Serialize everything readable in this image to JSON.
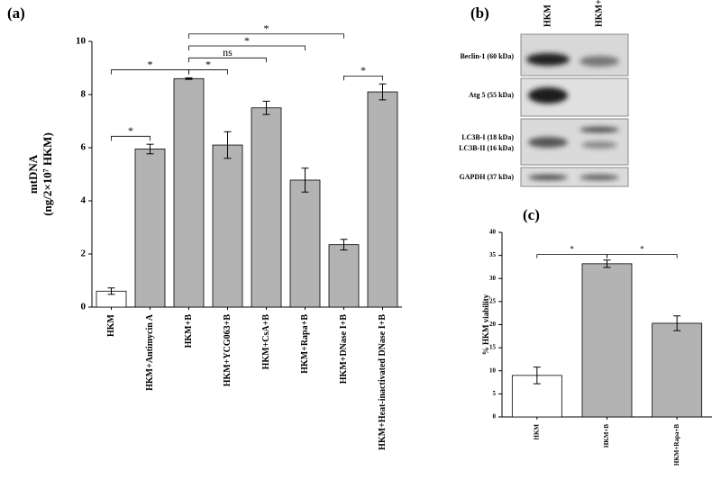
{
  "chart_data": [
    {
      "type": "bar",
      "panel_label": "(a)",
      "y_label": [
        "mtDNA",
        "(ng/2×10⁷ HKM)"
      ],
      "categories": [
        "HKM",
        "HKM+Antimycin A",
        "HKM+B",
        "HKM+YCG063+B",
        "HKM+CsA+B",
        "HKM+Rapa+B",
        "HKM+DNase I+B",
        "HKM+Heat-inactivated DNase I+B"
      ],
      "values": [
        0.6,
        5.95,
        8.6,
        6.1,
        7.5,
        4.78,
        2.35,
        8.1
      ],
      "errors": [
        0.12,
        0.18,
        0.03,
        0.5,
        0.25,
        0.45,
        0.2,
        0.3
      ],
      "colors": [
        "#ffffff",
        "#b3b3b3",
        "#b3b3b3",
        "#b3b3b3",
        "#b3b3b3",
        "#b3b3b3",
        "#b3b3b3",
        "#b3b3b3"
      ],
      "ylim": [
        0,
        10
      ],
      "yticks": [
        0,
        2,
        4,
        6,
        8,
        10
      ],
      "annotations": [
        {
          "from": 0,
          "to": 1,
          "label": "*"
        },
        {
          "from": 0,
          "to": 2,
          "label": "*"
        },
        {
          "from": 2,
          "to": 3,
          "label": "*"
        },
        {
          "from": 2,
          "to": 4,
          "label": "ns"
        },
        {
          "from": 2,
          "to": 5,
          "label": "*"
        },
        {
          "from": 2,
          "to": 6,
          "label": "*"
        },
        {
          "from": 6,
          "to": 7,
          "label": "*"
        }
      ]
    },
    {
      "type": "bar",
      "panel_label": "(c)",
      "y_label": [
        "% HKM viability"
      ],
      "categories": [
        "HKM",
        "HKM+B",
        "HKM+Rapa+B"
      ],
      "values": [
        9,
        33.2,
        20.3
      ],
      "errors": [
        1.8,
        0.8,
        1.6
      ],
      "colors": [
        "#ffffff",
        "#b3b3b3",
        "#b3b3b3"
      ],
      "ylim": [
        0,
        40
      ],
      "yticks": [
        0,
        5,
        10,
        15,
        20,
        25,
        30,
        35,
        40
      ],
      "annotations": [
        {
          "from": 0,
          "to": 1,
          "label": "*"
        },
        {
          "from": 1,
          "to": 2,
          "label": "*"
        }
      ]
    }
  ],
  "blot": {
    "panel_label": "(b)",
    "columns": [
      "HKM",
      "HKM+B"
    ],
    "rows": [
      "Beclin-1 (60 kDa)",
      "Atg 5 (55 kDa)",
      "LC3B-I (18 kDa)",
      "LC3B-II (16 kDa)",
      "GAPDH (37 kDa)"
    ]
  }
}
